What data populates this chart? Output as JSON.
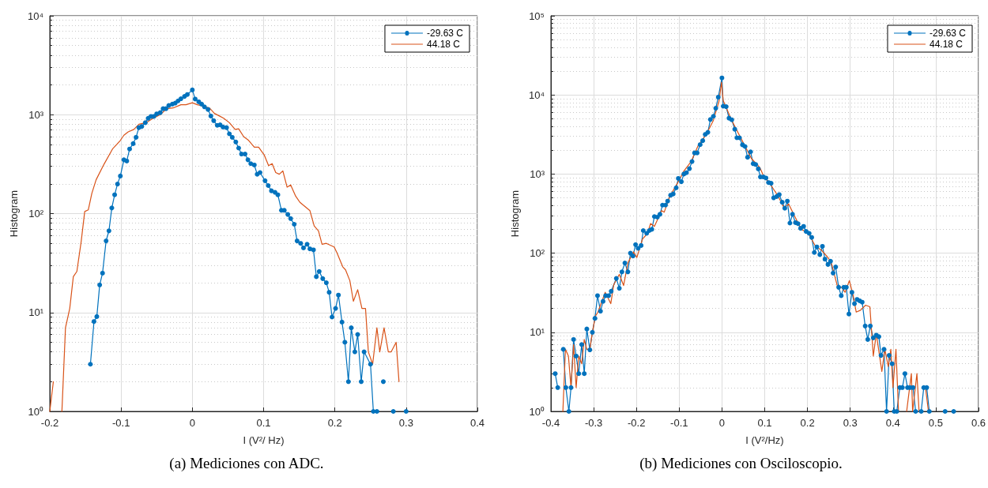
{
  "chart_data": [
    {
      "type": "line",
      "xlabel": "I (V²/ Hz)",
      "ylabel": "Histogram",
      "annotations": [
        "(a) Mediciones con ADC."
      ],
      "log": "y",
      "grid": true,
      "legend": "top right",
      "line_style": "solid",
      "xlim": [
        -0.2,
        0.4
      ],
      "xticks": [
        -0.2,
        -0.1,
        0,
        0.1,
        0.2,
        0.3,
        0.4
      ],
      "ylim": [
        1,
        10000
      ],
      "yticks": [
        {
          "value": 1,
          "label": "10⁰"
        },
        {
          "value": 10,
          "label": "10¹"
        },
        {
          "value": 100,
          "label": "10²"
        },
        {
          "value": 1000,
          "label": "10³"
        },
        {
          "value": 10000,
          "label": "10⁴"
        }
      ],
      "series": [
        {
          "name": "-29.63 C",
          "color": "#0072bd",
          "marker": "circle",
          "x": [
            -0.143,
            -0.138,
            -0.134,
            -0.13,
            -0.126,
            -0.121,
            -0.117,
            -0.113,
            -0.109,
            -0.105,
            -0.101,
            -0.096,
            -0.092,
            -0.088,
            -0.083,
            -0.079,
            -0.075,
            -0.071,
            -0.066,
            -0.062,
            -0.058,
            -0.054,
            -0.05,
            -0.045,
            -0.041,
            -0.037,
            -0.033,
            -0.028,
            -0.024,
            -0.02,
            -0.016,
            -0.011,
            -0.007,
            0,
            0.004,
            0.009,
            0.013,
            0.017,
            0.022,
            0.026,
            0.03,
            0.035,
            0.039,
            0.043,
            0.048,
            0.052,
            0.056,
            0.061,
            0.065,
            0.069,
            0.074,
            0.078,
            0.082,
            0.087,
            0.091,
            0.095,
            0.102,
            0.1065,
            0.111,
            0.116,
            0.12,
            0.125,
            0.129,
            0.134,
            0.138,
            0.143,
            0.147,
            0.152,
            0.156,
            0.161,
            0.165,
            0.17,
            0.174,
            0.178,
            0.183,
            0.188,
            0.192,
            0.196,
            0.201,
            0.205,
            0.21,
            0.214,
            0.219,
            0.223,
            0.228,
            0.232,
            0.237,
            0.241,
            0.25,
            0.254,
            0.259,
            0.263,
            0.268,
            0.273,
            0.282,
            0.291,
            0.3
          ],
          "values": [
            3,
            8.1,
            9.1,
            19,
            25,
            53,
            67,
            114,
            155,
            199,
            240,
            350,
            340,
            450,
            510,
            590,
            740,
            760,
            830,
            920,
            960,
            960,
            1020,
            1050,
            1150,
            1150,
            1240,
            1280,
            1310,
            1380,
            1450,
            1530,
            1600,
            1780,
            1440,
            1350,
            1280,
            1200,
            1130,
            970,
            870,
            780,
            790,
            750,
            740,
            640,
            590,
            530,
            460,
            400,
            400,
            350,
            320,
            310,
            250,
            260,
            215,
            192,
            170,
            164,
            155,
            108,
            108,
            98,
            89,
            78,
            53,
            50,
            45,
            49,
            44,
            43,
            23,
            26,
            22,
            20,
            16,
            9,
            11,
            15,
            8,
            5,
            2,
            7,
            4,
            6,
            2,
            4,
            3,
            1,
            1,
            null,
            2,
            null,
            1,
            null,
            1
          ]
        },
        {
          "name": "44.18 C",
          "color": "#d95319",
          "marker": "none",
          "x": [
            -0.2,
            -0.195,
            -0.189,
            -0.183,
            -0.178,
            -0.172,
            -0.167,
            -0.162,
            -0.156,
            -0.151,
            -0.146,
            -0.141,
            -0.135,
            -0.124,
            -0.112,
            -0.106,
            -0.101,
            -0.096,
            -0.09,
            -0.082,
            -0.075,
            -0.065,
            -0.055,
            -0.045,
            -0.036,
            -0.027,
            -0.016,
            -0.009,
            0,
            0.007,
            0.012,
            0.024,
            0.031,
            0.038,
            0.044,
            0.052,
            0.06,
            0.065,
            0.072,
            0.079,
            0.087,
            0.093,
            0.101,
            0.107,
            0.112,
            0.117,
            0.122,
            0.127,
            0.133,
            0.138,
            0.145,
            0.151,
            0.165,
            0.171,
            0.177,
            0.182,
            0.188,
            0.199,
            0.203,
            0.211,
            0.215,
            0.221,
            0.226,
            0.232,
            0.238,
            0.243,
            0.247,
            0.253,
            0.259,
            0.263,
            0.269,
            0.275,
            0.279,
            0.286,
            0.29
          ],
          "values": [
            1,
            2,
            null,
            1,
            7,
            11,
            23,
            26,
            52,
            105,
            109,
            160,
            220,
            315,
            450,
            500,
            550,
            620,
            670,
            710,
            800,
            830,
            920,
            1000,
            1150,
            1170,
            1260,
            1260,
            1320,
            1260,
            1240,
            1170,
            1030,
            970,
            920,
            830,
            710,
            720,
            600,
            550,
            470,
            470,
            390,
            305,
            320,
            260,
            250,
            270,
            185,
            195,
            150,
            130,
            107,
            75,
            67,
            49,
            50,
            46,
            40,
            29,
            27,
            21,
            13,
            17,
            11,
            11,
            4,
            3,
            7,
            4,
            7,
            4,
            4,
            5,
            2
          ]
        }
      ]
    },
    {
      "type": "line",
      "xlabel": "I (V²/Hz)",
      "ylabel": "Histogram",
      "annotations": [
        "(b) Mediciones con Osciloscopio."
      ],
      "log": "y",
      "grid": true,
      "legend": "top right",
      "line_style": "solid",
      "xlim": [
        -0.4,
        0.6
      ],
      "xticks": [
        -0.4,
        -0.3,
        -0.2,
        -0.1,
        0,
        0.1,
        0.2,
        0.3,
        0.4,
        0.5,
        0.6
      ],
      "ylim": [
        1,
        100000
      ],
      "yticks": [
        {
          "value": 1,
          "label": "10⁰"
        },
        {
          "value": 10,
          "label": "10¹"
        },
        {
          "value": 100,
          "label": "10²"
        },
        {
          "value": 1000,
          "label": "10³"
        },
        {
          "value": 10000,
          "label": "10⁴"
        },
        {
          "value": 100000,
          "label": "10⁵"
        }
      ],
      "series": [
        {
          "name": "-29.63 C",
          "color": "#0072bd",
          "marker": "circle",
          "x": [
            -0.39,
            -0.384,
            -0.378,
            -0.371,
            -0.365,
            -0.358,
            -0.353,
            -0.347,
            -0.341,
            -0.335,
            -0.328,
            -0.322,
            -0.316,
            -0.309,
            -0.303,
            -0.297,
            -0.291,
            -0.284,
            -0.278,
            -0.272,
            -0.265,
            -0.259,
            -0.247,
            -0.24,
            -0.234,
            -0.227,
            -0.22,
            -0.214,
            -0.208,
            -0.202,
            -0.196,
            -0.189,
            -0.184,
            -0.176,
            -0.17,
            -0.164,
            -0.158,
            -0.151,
            -0.145,
            -0.139,
            -0.132,
            -0.127,
            -0.12,
            -0.114,
            -0.107,
            -0.102,
            -0.095,
            -0.089,
            -0.083,
            -0.076,
            -0.07,
            -0.064,
            -0.058,
            -0.051,
            -0.045,
            -0.039,
            -0.033,
            -0.027,
            -0.02,
            -0.0145,
            -0.0086,
            0,
            0.003,
            0.0099,
            0.0165,
            0.023,
            0.03,
            0.035,
            0.041,
            0.048,
            0.054,
            0.06,
            0.067,
            0.073,
            0.079,
            0.085,
            0.09,
            0.097,
            0.103,
            0.109,
            0.115,
            0.121,
            0.128,
            0.134,
            0.141,
            0.147,
            0.153,
            0.159,
            0.165,
            0.172,
            0.178,
            0.184,
            0.191,
            0.197,
            0.204,
            0.21,
            0.216,
            0.222,
            0.229,
            0.235,
            0.241,
            0.248,
            0.254,
            0.26,
            0.266,
            0.273,
            0.279,
            0.285,
            0.291,
            0.297,
            0.304,
            0.31,
            0.316,
            0.322,
            0.328,
            0.335,
            0.341,
            0.347,
            0.354,
            0.361,
            0.367,
            0.372,
            0.379,
            0.385,
            0.391,
            0.398,
            0.403,
            0.409,
            0.416,
            0.422,
            0.428,
            0.434,
            0.44,
            0.447,
            0.453,
            0.46,
            0.466,
            0.472,
            0.479,
            0.485,
            0.5,
            0.522,
            0.532,
            0.542
          ],
          "values": [
            3,
            2,
            null,
            6.1,
            2,
            1,
            2,
            8.1,
            5,
            3,
            7,
            3,
            11,
            6,
            10,
            15,
            29,
            18.5,
            24.6,
            29,
            29,
            33,
            48,
            36,
            58,
            75,
            58,
            100,
            92,
            128,
            115,
            125,
            193,
            178,
            193,
            200,
            290,
            285,
            310,
            405,
            405,
            455,
            540,
            560,
            670,
            880,
            800,
            1000,
            1040,
            1170,
            1440,
            1850,
            1850,
            2350,
            2640,
            3170,
            3370,
            4890,
            5370,
            6780,
            9370,
            16400,
            7200,
            7100,
            5080,
            4850,
            3680,
            2870,
            2870,
            2340,
            2230,
            1630,
            1910,
            1350,
            1320,
            1160,
            920,
            920,
            890,
            780,
            765,
            500,
            520,
            550,
            440,
            370,
            455,
            240,
            310,
            243,
            236,
            206,
            218,
            188,
            178,
            158,
            102,
            120,
            96,
            122,
            84,
            72,
            79,
            56,
            67,
            37,
            29,
            37,
            37,
            17,
            32,
            23,
            26,
            25,
            24,
            12,
            8.1,
            12,
            8.5,
            9.2,
            8.8,
            5.1,
            6.1,
            1,
            5.1,
            4,
            1,
            1,
            2,
            2,
            3,
            2,
            2,
            2,
            1,
            null,
            1,
            2,
            2,
            1,
            null,
            1,
            null,
            1
          ]
        },
        {
          "name": "44.18 C",
          "color": "#d95319",
          "marker": "none",
          "x": [
            -0.372,
            -0.366,
            -0.359,
            -0.353,
            -0.347,
            -0.341,
            -0.335,
            -0.328,
            -0.322,
            -0.316,
            -0.309,
            -0.303,
            -0.296,
            -0.29,
            -0.273,
            -0.26,
            -0.253,
            -0.24,
            -0.23,
            -0.22,
            -0.207,
            -0.199,
            -0.186,
            -0.174,
            -0.167,
            -0.158,
            -0.141,
            -0.135,
            -0.122,
            -0.105,
            -0.089,
            -0.072,
            -0.056,
            -0.036,
            -0.02,
            -0.0066,
            -0.001,
            0.003,
            0.023,
            0.043,
            0.069,
            0.089,
            0.097,
            0.113,
            0.13,
            0.146,
            0.156,
            0.169,
            0.186,
            0.202,
            0.219,
            0.232,
            0.245,
            0.255,
            0.271,
            0.28,
            0.288,
            0.298,
            0.307,
            0.314,
            0.324,
            0.336,
            0.346,
            0.354,
            0.361,
            0.374,
            0.381,
            0.389,
            0.395,
            0.4,
            0.407,
            0.413,
            0.42,
            0.432,
            0.443,
            0.446,
            0.456,
            0.461,
            0.468,
            0.476,
            0.483
          ],
          "values": [
            1,
            6.1,
            5,
            2,
            7,
            2,
            5,
            4,
            8.1,
            6.1,
            6.1,
            10,
            16,
            18,
            32,
            23,
            40,
            54,
            39,
            75,
            104,
            88,
            150,
            178,
            237,
            218,
            345,
            330,
            520,
            750,
            1090,
            1440,
            2270,
            3220,
            4770,
            8460,
            14500,
            8460,
            4770,
            2930,
            1570,
            1200,
            955,
            745,
            540,
            370,
            420,
            300,
            200,
            178,
            122,
            110,
            92,
            78,
            36.6,
            37,
            32,
            45,
            29,
            18,
            19,
            22,
            21,
            5,
            9.6,
            3.2,
            6.1,
            3.7,
            6.1,
            2,
            6.1,
            1,
            null,
            1,
            3,
            1,
            3,
            1,
            null,
            2,
            1
          ]
        }
      ]
    }
  ]
}
